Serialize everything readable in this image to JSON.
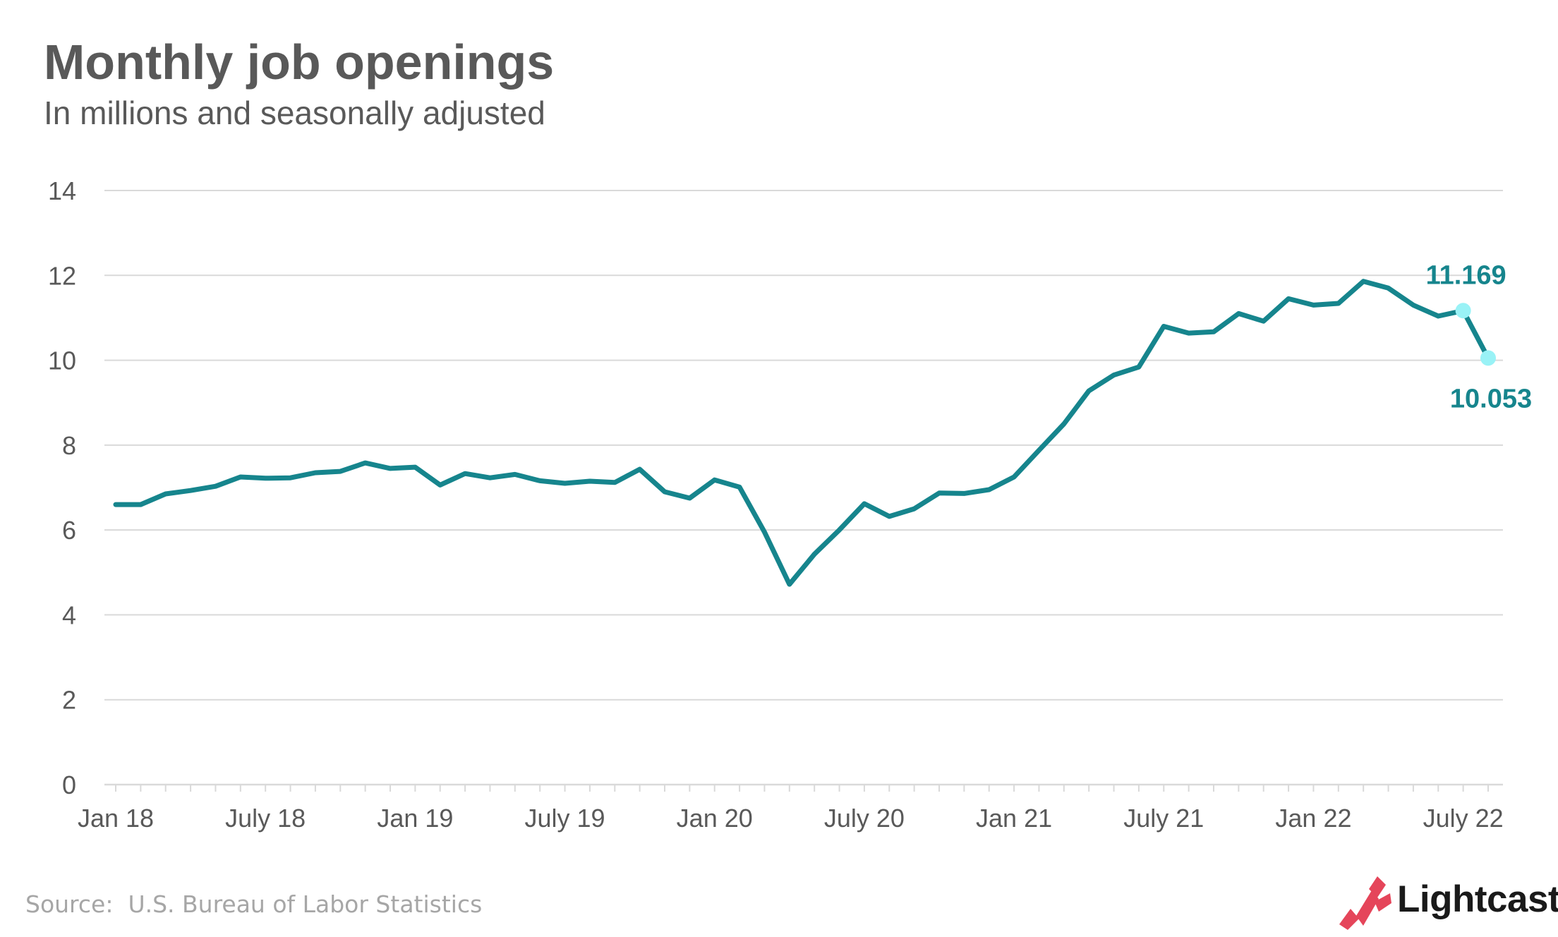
{
  "colors": {
    "line": "#16858d",
    "highlight_marker": "#99f2f6",
    "gridline": "#d9d9d9",
    "axis_text": "#595959",
    "title": "#595959",
    "source": "#a6a6a6",
    "brand_accent": "#e5455a"
  },
  "brand": {
    "name": "Lightcast",
    "icon": "lightcast-logo-icon"
  },
  "source": "Source:  U.S. Bureau of Labor Statistics",
  "chart_data": {
    "type": "line",
    "title": "Monthly job openings",
    "subtitle": "In millions and seasonally adjusted",
    "xlabel": "",
    "ylabel": "",
    "ylim": [
      0,
      14
    ],
    "yticks": [
      0,
      2,
      4,
      6,
      8,
      10,
      12,
      14
    ],
    "grid": true,
    "x": [
      "2018-01",
      "2018-02",
      "2018-03",
      "2018-04",
      "2018-05",
      "2018-06",
      "2018-07",
      "2018-08",
      "2018-09",
      "2018-10",
      "2018-11",
      "2018-12",
      "2019-01",
      "2019-02",
      "2019-03",
      "2019-04",
      "2019-05",
      "2019-06",
      "2019-07",
      "2019-08",
      "2019-09",
      "2019-10",
      "2019-11",
      "2019-12",
      "2020-01",
      "2020-02",
      "2020-03",
      "2020-04",
      "2020-05",
      "2020-06",
      "2020-07",
      "2020-08",
      "2020-09",
      "2020-10",
      "2020-11",
      "2020-12",
      "2021-01",
      "2021-02",
      "2021-03",
      "2021-04",
      "2021-05",
      "2021-06",
      "2021-07",
      "2021-08",
      "2021-09",
      "2021-10",
      "2021-11",
      "2021-12",
      "2022-01",
      "2022-02",
      "2022-03",
      "2022-04",
      "2022-05",
      "2022-06",
      "2022-07",
      "2022-08"
    ],
    "xtick_labels": [
      {
        "x": "2018-01",
        "label": "Jan 18"
      },
      {
        "x": "2018-07",
        "label": "July 18"
      },
      {
        "x": "2019-01",
        "label": "Jan 19"
      },
      {
        "x": "2019-07",
        "label": "July 19"
      },
      {
        "x": "2020-01",
        "label": "Jan 20"
      },
      {
        "x": "2020-07",
        "label": "July 20"
      },
      {
        "x": "2021-01",
        "label": "Jan 21"
      },
      {
        "x": "2021-07",
        "label": "July 21"
      },
      {
        "x": "2022-01",
        "label": "Jan 22"
      },
      {
        "x": "2022-07",
        "label": "July 22"
      }
    ],
    "series": [
      {
        "values": [
          6.6,
          6.6,
          6.85,
          6.93,
          7.03,
          7.25,
          7.22,
          7.23,
          7.35,
          7.38,
          7.58,
          7.45,
          7.48,
          7.06,
          7.33,
          7.23,
          7.31,
          7.16,
          7.1,
          7.15,
          7.12,
          7.43,
          6.9,
          6.75,
          7.18,
          7.01,
          5.95,
          4.72,
          5.43,
          6.0,
          6.62,
          6.32,
          6.5,
          6.87,
          6.86,
          6.95,
          7.25,
          7.88,
          8.5,
          9.28,
          9.65,
          9.84,
          10.8,
          10.64,
          10.67,
          11.1,
          10.92,
          11.45,
          11.3,
          11.34,
          11.86,
          11.7,
          11.3,
          11.04,
          11.169,
          10.053
        ]
      }
    ],
    "annotations": [
      {
        "x": "2022-07",
        "y": 11.169,
        "label": "11.169",
        "position": "above"
      },
      {
        "x": "2022-08",
        "y": 10.053,
        "label": "10.053",
        "position": "below"
      }
    ]
  }
}
